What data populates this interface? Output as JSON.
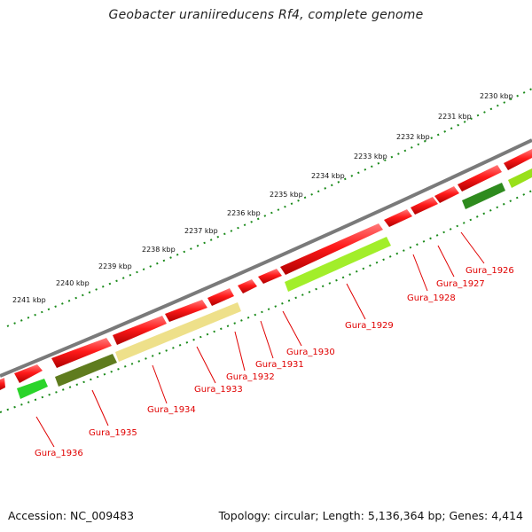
{
  "title": "Geobacter uraniireducens Rf4, complete genome",
  "accession": "Accession: NC_009483",
  "summary": "Topology: circular; Length: 5,136,364 bp; Genes: 4,414",
  "colors": {
    "backbone": "#7a7a7a",
    "forward_gene": "#ff1a1a",
    "ruler_ticks": "#1a8a1a",
    "label_text": "#e00000",
    "leader_lines": "#e00000"
  },
  "ruler_labels": [
    "2230 kbp",
    "2231 kbp",
    "2232 kbp",
    "2233 kbp",
    "2234 kbp",
    "2235 kbp",
    "2236 kbp",
    "2237 kbp",
    "2238 kbp",
    "2239 kbp",
    "2240 kbp",
    "2241 kbp"
  ],
  "gene_labels": [
    "Gura_1926",
    "Gura_1927",
    "Gura_1928",
    "Gura_1929",
    "Gura_1930",
    "Gura_1931",
    "Gura_1932",
    "Gura_1933",
    "Gura_1934",
    "Gura_1935",
    "Gura_1936"
  ],
  "reverse_genes": [
    {
      "label": "Gura_1926",
      "color": "#2e8b1e"
    },
    {
      "label": "Gura_1927",
      "color": "#99e01a"
    },
    {
      "label": "Gura_1929",
      "color": "#a2ee2a"
    },
    {
      "label": "Gura_1932",
      "color": "#eee08a"
    },
    {
      "label": "Gura_1935",
      "color": "#5f7c1e"
    },
    {
      "label": "Gura_1936",
      "color": "#2ad42a"
    }
  ]
}
